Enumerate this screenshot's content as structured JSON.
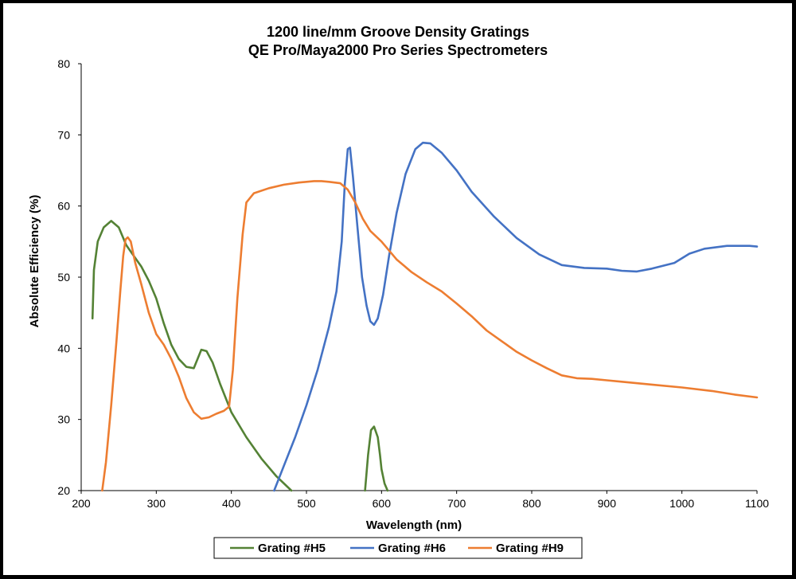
{
  "chart_data": {
    "type": "line",
    "title": "1200 line/mm Groove Density Gratings",
    "subtitle": "QE Pro/Maya2000 Pro Series Spectrometers",
    "xlabel": "Wavelength (nm)",
    "ylabel": "Absolute Efficiency (%)",
    "xlim": [
      200,
      1100
    ],
    "ylim": [
      20,
      80
    ],
    "xticks": [
      "200",
      "300",
      "400",
      "500",
      "600",
      "700",
      "800",
      "900",
      "1000",
      "1100"
    ],
    "yticks": [
      "20",
      "30",
      "40",
      "50",
      "60",
      "70",
      "80"
    ],
    "grid": false,
    "legend_position": "bottom",
    "series": [
      {
        "name": "Grating #H5",
        "color": "#548235",
        "segments": [
          [
            [
              215,
              44.2
            ],
            [
              217,
              51
            ],
            [
              222,
              55
            ],
            [
              230,
              57
            ],
            [
              240,
              57.9
            ],
            [
              250,
              57
            ],
            [
              260,
              54.5
            ],
            [
              270,
              53
            ],
            [
              280,
              51.5
            ],
            [
              290,
              49.5
            ],
            [
              300,
              47
            ],
            [
              310,
              43.5
            ],
            [
              320,
              40.5
            ],
            [
              330,
              38.5
            ],
            [
              340,
              37.4
            ],
            [
              350,
              37.2
            ],
            [
              355,
              38.5
            ],
            [
              360,
              39.8
            ],
            [
              367,
              39.6
            ],
            [
              375,
              38
            ],
            [
              385,
              35
            ],
            [
              400,
              31
            ],
            [
              420,
              27.5
            ],
            [
              440,
              24.5
            ],
            [
              460,
              22
            ],
            [
              480,
              20
            ]
          ],
          [
            [
              578,
              20
            ],
            [
              582,
              25
            ],
            [
              586,
              28.5
            ],
            [
              590,
              29
            ],
            [
              595,
              27.5
            ],
            [
              598,
              25
            ],
            [
              600,
              23
            ],
            [
              604,
              21
            ],
            [
              608,
              20
            ]
          ]
        ]
      },
      {
        "name": "Grating #H6",
        "color": "#4472C4",
        "segments": [
          [
            [
              457,
              20
            ],
            [
              470,
              23.5
            ],
            [
              485,
              27.5
            ],
            [
              500,
              32
            ],
            [
              515,
              37
            ],
            [
              530,
              43
            ],
            [
              540,
              48
            ],
            [
              547,
              55
            ],
            [
              551,
              63
            ],
            [
              555,
              68
            ],
            [
              558,
              68.2
            ],
            [
              562,
              64
            ],
            [
              568,
              57
            ],
            [
              574,
              50
            ],
            [
              580,
              46
            ],
            [
              585,
              43.8
            ],
            [
              590,
              43.3
            ],
            [
              595,
              44.2
            ],
            [
              602,
              47.5
            ],
            [
              610,
              53
            ],
            [
              620,
              59
            ],
            [
              632,
              64.5
            ],
            [
              645,
              68
            ],
            [
              655,
              68.9
            ],
            [
              665,
              68.8
            ],
            [
              680,
              67.5
            ],
            [
              700,
              65
            ],
            [
              720,
              62
            ],
            [
              750,
              58.5
            ],
            [
              780,
              55.5
            ],
            [
              810,
              53.2
            ],
            [
              840,
              51.7
            ],
            [
              870,
              51.3
            ],
            [
              900,
              51.2
            ],
            [
              920,
              50.9
            ],
            [
              940,
              50.8
            ],
            [
              960,
              51.2
            ],
            [
              990,
              52
            ],
            [
              1010,
              53.3
            ],
            [
              1030,
              54
            ],
            [
              1060,
              54.4
            ],
            [
              1090,
              54.4
            ],
            [
              1100,
              54.3
            ]
          ]
        ]
      },
      {
        "name": "Grating #H9",
        "color": "#ED7D31",
        "segments": [
          [
            [
              228,
              20
            ],
            [
              233,
              24
            ],
            [
              240,
              32
            ],
            [
              247,
              41
            ],
            [
              252,
              48
            ],
            [
              256,
              53
            ],
            [
              259,
              55.3
            ],
            [
              262,
              55.6
            ],
            [
              266,
              55
            ],
            [
              272,
              52
            ],
            [
              280,
              49
            ],
            [
              290,
              45
            ],
            [
              300,
              42
            ],
            [
              310,
              40.5
            ],
            [
              320,
              38.5
            ],
            [
              330,
              36
            ],
            [
              340,
              33
            ],
            [
              350,
              31
            ],
            [
              360,
              30.1
            ],
            [
              370,
              30.3
            ],
            [
              380,
              30.8
            ],
            [
              390,
              31.2
            ],
            [
              397,
              31.8
            ],
            [
              402,
              37
            ],
            [
              408,
              47
            ],
            [
              415,
              56
            ],
            [
              420,
              60.5
            ],
            [
              430,
              61.8
            ],
            [
              450,
              62.5
            ],
            [
              470,
              63
            ],
            [
              490,
              63.3
            ],
            [
              510,
              63.5
            ],
            [
              520,
              63.5
            ],
            [
              530,
              63.4
            ],
            [
              545,
              63.2
            ],
            [
              555,
              62.3
            ],
            [
              565,
              60.5
            ],
            [
              575,
              58.2
            ],
            [
              585,
              56.5
            ],
            [
              600,
              55
            ],
            [
              620,
              52.5
            ],
            [
              640,
              50.7
            ],
            [
              660,
              49.3
            ],
            [
              680,
              48
            ],
            [
              700,
              46.3
            ],
            [
              720,
              44.5
            ],
            [
              740,
              42.5
            ],
            [
              760,
              41
            ],
            [
              780,
              39.5
            ],
            [
              800,
              38.3
            ],
            [
              820,
              37.2
            ],
            [
              840,
              36.2
            ],
            [
              860,
              35.8
            ],
            [
              880,
              35.7
            ],
            [
              900,
              35.5
            ],
            [
              920,
              35.3
            ],
            [
              960,
              34.9
            ],
            [
              1000,
              34.5
            ],
            [
              1040,
              34
            ],
            [
              1070,
              33.5
            ],
            [
              1100,
              33.1
            ]
          ]
        ]
      }
    ]
  }
}
